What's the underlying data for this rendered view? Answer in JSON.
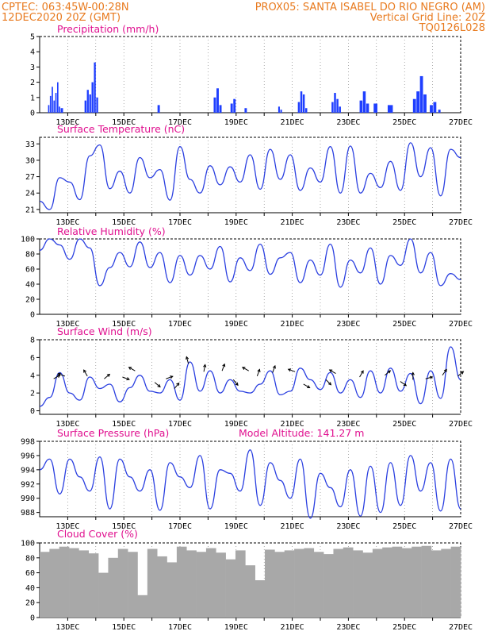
{
  "header": {
    "left_line1": "CPTEC:   063:45W-00:28N",
    "right_line1": "PROX05: SANTA ISABEL DO RIO NEGRO (AM)",
    "left_line2": "12DEC2020 20Z (GMT)",
    "right_line2": "Vertical Grid Line: 20Z",
    "right_line3": "TQ0126L028"
  },
  "x_axis": {
    "days": [
      "13DEC",
      "15DEC",
      "17DEC",
      "19DEC",
      "21DEC",
      "23DEC",
      "25DEC",
      "27DEC"
    ],
    "start": "2020-12-12T20Z",
    "end": "2020-12-27T20Z"
  },
  "chart_data": [
    {
      "type": "bar",
      "title": "Precipitation (mm/h)",
      "ylim": [
        0,
        5
      ],
      "yticks": [
        0,
        1,
        2,
        3,
        4,
        5
      ],
      "bar_color": "#1f3fff",
      "events": [
        {
          "day": 0.3,
          "width": 0.45,
          "peaks": [
            0.5,
            1.1,
            1.7,
            0.8,
            1.3,
            2.0,
            0.4
          ]
        },
        {
          "day": 0.75,
          "width": 0.1,
          "peaks": [
            0.3
          ]
        },
        {
          "day": 1.6,
          "width": 0.5,
          "peaks": [
            0.8,
            1.5,
            1.2,
            2.0,
            3.3,
            1.0
          ]
        },
        {
          "day": 4.2,
          "width": 0.1,
          "peaks": [
            0.5
          ]
        },
        {
          "day": 6.2,
          "width": 0.3,
          "peaks": [
            1.0,
            1.6,
            0.5
          ]
        },
        {
          "day": 6.8,
          "width": 0.2,
          "peaks": [
            0.6,
            0.9
          ]
        },
        {
          "day": 7.3,
          "width": 0.1,
          "peaks": [
            0.3
          ]
        },
        {
          "day": 8.5,
          "width": 0.15,
          "peaks": [
            0.4,
            0.2
          ]
        },
        {
          "day": 9.2,
          "width": 0.35,
          "peaks": [
            0.7,
            1.4,
            1.2,
            0.3
          ]
        },
        {
          "day": 10.4,
          "width": 0.35,
          "peaks": [
            0.7,
            1.3,
            0.9,
            0.4
          ]
        },
        {
          "day": 11.4,
          "width": 0.35,
          "peaks": [
            0.8,
            1.4,
            0.6
          ]
        },
        {
          "day": 11.9,
          "width": 0.15,
          "peaks": [
            0.6
          ]
        },
        {
          "day": 12.4,
          "width": 0.2,
          "peaks": [
            0.5
          ]
        },
        {
          "day": 13.3,
          "width": 0.5,
          "peaks": [
            0.9,
            1.4,
            2.4,
            1.2
          ]
        },
        {
          "day": 13.9,
          "width": 0.25,
          "peaks": [
            0.5,
            0.7
          ]
        },
        {
          "day": 14.2,
          "width": 0.1,
          "peaks": [
            0.2
          ]
        }
      ]
    },
    {
      "type": "line",
      "title": "Surface Temperature (nC)",
      "ylim": [
        20.4,
        34.2
      ],
      "yticks": [
        21,
        24,
        27,
        30,
        33
      ],
      "line_color": "#2a3fe0",
      "y": [
        22.5,
        21.0,
        26.8,
        26.0,
        22.8,
        30.8,
        32.8,
        24.8,
        28.0,
        24.0,
        30.5,
        26.8,
        28.3,
        22.7,
        32.5,
        26.5,
        24.0,
        29.0,
        25.5,
        28.8,
        26.0,
        31.0,
        24.7,
        32.0,
        26.5,
        31.0,
        24.5,
        28.6,
        26.0,
        32.5,
        24.0,
        32.6,
        24.0,
        27.6,
        25.0,
        29.8,
        24.5,
        33.2,
        27.0,
        32.3,
        23.5,
        32.0,
        30.5
      ]
    },
    {
      "type": "line",
      "title": "Relative Humidity (%)",
      "ylim": [
        0,
        100
      ],
      "yticks": [
        0,
        20,
        40,
        60,
        80,
        100
      ],
      "line_color": "#2a3fe0",
      "y": [
        85,
        100,
        92,
        73,
        100,
        88,
        38,
        62,
        82,
        63,
        96,
        62,
        82,
        42,
        78,
        52,
        78,
        60,
        90,
        43,
        75,
        58,
        93,
        53,
        75,
        82,
        42,
        72,
        52,
        93,
        36,
        72,
        55,
        88,
        40,
        78,
        65,
        100,
        55,
        82,
        38,
        54,
        46
      ]
    },
    {
      "type": "line",
      "title": "Surface Wind (m/s)",
      "ylim": [
        -0.4,
        8
      ],
      "yticks": [
        0,
        2,
        4,
        6,
        8
      ],
      "line_color": "#2a3fe0",
      "y": [
        0.5,
        1.5,
        4.3,
        2.0,
        1.2,
        3.8,
        2.5,
        3.0,
        1.0,
        2.6,
        4.0,
        2.2,
        2.0,
        3.5,
        1.2,
        5.5,
        2.2,
        4.5,
        2.0,
        3.5,
        2.2,
        2.0,
        3.0,
        4.5,
        1.8,
        2.2,
        4.8,
        3.5,
        2.4,
        4.3,
        2.0,
        3.5,
        1.5,
        4.5,
        2.0,
        4.8,
        2.2,
        4.2,
        0.8,
        4.5,
        1.4,
        7.2,
        3.5
      ]
    },
    {
      "type": "line",
      "title": "Surface Pressure (hPa)",
      "ylim": [
        987.4,
        998
      ],
      "yticks": [
        988,
        990,
        992,
        994,
        996,
        998
      ],
      "line_color": "#2a3fe0",
      "y": [
        994,
        995.5,
        990.6,
        995.5,
        993,
        991,
        995.8,
        988.5,
        995.5,
        993,
        991,
        994,
        988.3,
        995,
        993,
        991.5,
        996,
        988.5,
        994,
        993.5,
        991,
        996.8,
        989,
        995,
        992.5,
        990,
        995.5,
        987.2,
        993.5,
        991.5,
        988.8,
        994,
        987.5,
        994.5,
        988,
        995,
        989,
        996,
        991,
        995,
        988.2,
        995.5,
        988.5
      ]
    },
    {
      "type": "bar",
      "title": "Cloud Cover (%)",
      "ylim": [
        0,
        100
      ],
      "yticks": [
        0,
        20,
        40,
        60,
        80,
        100
      ],
      "bar_color": "#a8a8a8",
      "values": [
        88,
        92,
        95,
        93,
        90,
        86,
        60,
        80,
        92,
        88,
        30,
        92,
        82,
        74,
        95,
        90,
        88,
        93,
        87,
        78,
        90,
        70,
        50,
        91,
        88,
        90,
        92,
        93,
        88,
        85,
        92,
        94,
        90,
        87,
        92,
        94,
        95,
        93,
        95,
        96,
        90,
        92,
        95
      ]
    }
  ],
  "labels": {
    "precip_title": "Precipitation (mm/h)",
    "temp_title": "Surface Temperature (nC)",
    "rh_title": "Relative Humidity (%)",
    "wind_title": "Surface Wind (m/s)",
    "pressure_title": "Surface Pressure (hPa)",
    "model_altitude": "Model Altitude: 141.27 m",
    "cloud_title": "Cloud Cover (%)"
  }
}
